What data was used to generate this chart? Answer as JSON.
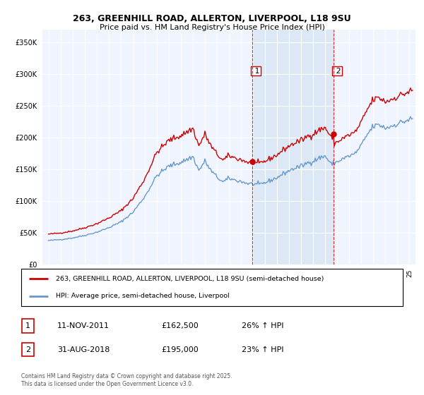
{
  "title_line1": "263, GREENHILL ROAD, ALLERTON, LIVERPOOL, L18 9SU",
  "title_line2": "Price paid vs. HM Land Registry's House Price Index (HPI)",
  "ylim": [
    0,
    370000
  ],
  "yticks": [
    0,
    50000,
    100000,
    150000,
    200000,
    250000,
    300000,
    350000
  ],
  "ytick_labels": [
    "£0",
    "£50K",
    "£100K",
    "£150K",
    "£200K",
    "£250K",
    "£300K",
    "£350K"
  ],
  "sale1_year": 2011.917,
  "sale1_label": "1",
  "sale1_date": "11-NOV-2011",
  "sale1_price": "£162,500",
  "sale1_hpi": "26% ↑ HPI",
  "sale2_year": 2018.667,
  "sale2_label": "2",
  "sale2_date": "31-AUG-2018",
  "sale2_price": "£195,000",
  "sale2_hpi": "23% ↑ HPI",
  "property_color": "#cc0000",
  "hpi_color": "#6699cc",
  "highlight_color": "#dce8f5",
  "background_color": "#f0f4ff",
  "grid_color": "#ffffff",
  "legend_label_property": "263, GREENHILL ROAD, ALLERTON, LIVERPOOL, L18 9SU (semi-detached house)",
  "legend_label_hpi": "HPI: Average price, semi-detached house, Liverpool",
  "footnote": "Contains HM Land Registry data © Crown copyright and database right 2025.\nThis data is licensed under the Open Government Licence v3.0."
}
